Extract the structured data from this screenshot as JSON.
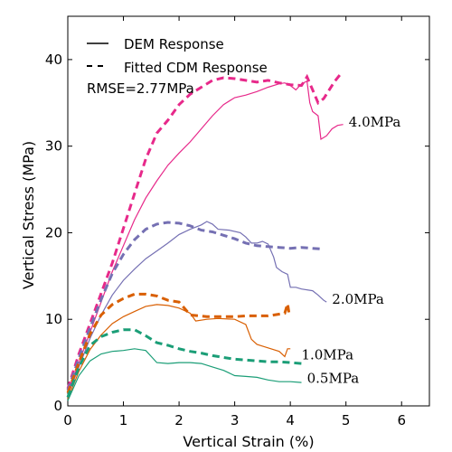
{
  "chart_data": {
    "type": "line",
    "xlabel": "Vertical Strain (%)",
    "ylabel": "Vertical Stress (MPa)",
    "xlim": [
      0,
      6.5
    ],
    "ylim": [
      0,
      45
    ],
    "xticks": [
      0,
      1,
      2,
      3,
      4,
      5,
      6
    ],
    "yticks": [
      0,
      10,
      20,
      30,
      40
    ],
    "grid": false,
    "legend": {
      "placement": "top-left",
      "entries": [
        {
          "label": "DEM Response",
          "style": "solid"
        },
        {
          "label": "Fitted CDM Response",
          "style": "dashed"
        }
      ]
    },
    "rmse_text": "RMSE=2.77MPa",
    "series": [
      {
        "name": "4.0MPa",
        "color": "#e7298a",
        "dem": [
          [
            0,
            1.5
          ],
          [
            0.2,
            5
          ],
          [
            0.4,
            8.5
          ],
          [
            0.6,
            12
          ],
          [
            0.8,
            15.5
          ],
          [
            1.0,
            18.5
          ],
          [
            1.2,
            21.5
          ],
          [
            1.4,
            24
          ],
          [
            1.6,
            26
          ],
          [
            1.8,
            27.8
          ],
          [
            2.0,
            29.2
          ],
          [
            2.2,
            30.5
          ],
          [
            2.4,
            32
          ],
          [
            2.6,
            33.5
          ],
          [
            2.8,
            34.8
          ],
          [
            3.0,
            35.6
          ],
          [
            3.2,
            35.9
          ],
          [
            3.4,
            36.3
          ],
          [
            3.6,
            36.8
          ],
          [
            3.8,
            37.2
          ],
          [
            3.9,
            37.3
          ],
          [
            4.0,
            37
          ],
          [
            4.1,
            36.5
          ],
          [
            4.2,
            37.2
          ],
          [
            4.3,
            37.5
          ],
          [
            4.35,
            35
          ],
          [
            4.4,
            34
          ],
          [
            4.5,
            33.5
          ],
          [
            4.55,
            30.8
          ],
          [
            4.65,
            31.2
          ],
          [
            4.75,
            32
          ],
          [
            4.85,
            32.4
          ],
          [
            4.95,
            32.5
          ]
        ],
        "cdm": [
          [
            0,
            2
          ],
          [
            0.2,
            6
          ],
          [
            0.4,
            9.5
          ],
          [
            0.6,
            13
          ],
          [
            0.8,
            16.5
          ],
          [
            1.0,
            20.5
          ],
          [
            1.2,
            24.5
          ],
          [
            1.4,
            28.5
          ],
          [
            1.6,
            31.5
          ],
          [
            1.8,
            33
          ],
          [
            2.0,
            34.8
          ],
          [
            2.2,
            36
          ],
          [
            2.4,
            36.8
          ],
          [
            2.6,
            37.6
          ],
          [
            2.8,
            37.9
          ],
          [
            3.0,
            37.8
          ],
          [
            3.2,
            37.6
          ],
          [
            3.4,
            37.4
          ],
          [
            3.6,
            37.6
          ],
          [
            3.8,
            37.3
          ],
          [
            4.0,
            37.1
          ],
          [
            4.2,
            37
          ],
          [
            4.3,
            38
          ],
          [
            4.4,
            36.5
          ],
          [
            4.5,
            35
          ],
          [
            4.6,
            35.5
          ],
          [
            4.7,
            36.5
          ],
          [
            4.8,
            37.5
          ],
          [
            4.9,
            38.3
          ]
        ],
        "label_at": [
          5.05,
          32.8
        ]
      },
      {
        "name": "2.0MPa",
        "color": "#7570b3",
        "dem": [
          [
            0,
            1.2
          ],
          [
            0.2,
            4.5
          ],
          [
            0.4,
            7.8
          ],
          [
            0.6,
            10.5
          ],
          [
            0.8,
            12.8
          ],
          [
            1.0,
            14.5
          ],
          [
            1.2,
            15.8
          ],
          [
            1.4,
            17
          ],
          [
            1.6,
            17.9
          ],
          [
            1.8,
            18.8
          ],
          [
            2.0,
            19.8
          ],
          [
            2.2,
            20.4
          ],
          [
            2.4,
            20.9
          ],
          [
            2.5,
            21.3
          ],
          [
            2.6,
            21
          ],
          [
            2.7,
            20.4
          ],
          [
            2.9,
            20.3
          ],
          [
            3.1,
            20
          ],
          [
            3.2,
            19.5
          ],
          [
            3.3,
            18.8
          ],
          [
            3.4,
            18.8
          ],
          [
            3.5,
            19
          ],
          [
            3.6,
            18.7
          ],
          [
            3.7,
            17.2
          ],
          [
            3.75,
            16
          ],
          [
            3.85,
            15.5
          ],
          [
            3.95,
            15.2
          ],
          [
            4.0,
            13.7
          ],
          [
            4.1,
            13.7
          ],
          [
            4.2,
            13.5
          ],
          [
            4.4,
            13.3
          ],
          [
            4.5,
            12.8
          ],
          [
            4.6,
            12.2
          ],
          [
            4.65,
            12
          ]
        ],
        "cdm": [
          [
            0,
            1.8
          ],
          [
            0.2,
            5.5
          ],
          [
            0.4,
            9
          ],
          [
            0.6,
            12.3
          ],
          [
            0.8,
            15.3
          ],
          [
            1.0,
            17.5
          ],
          [
            1.2,
            19.2
          ],
          [
            1.4,
            20.4
          ],
          [
            1.6,
            21
          ],
          [
            1.8,
            21.2
          ],
          [
            2.0,
            21.1
          ],
          [
            2.2,
            20.8
          ],
          [
            2.4,
            20.3
          ],
          [
            2.6,
            20.1
          ],
          [
            2.8,
            19.7
          ],
          [
            3.0,
            19.3
          ],
          [
            3.2,
            18.8
          ],
          [
            3.4,
            18.5
          ],
          [
            3.6,
            18.4
          ],
          [
            3.8,
            18.3
          ],
          [
            4.0,
            18.2
          ],
          [
            4.2,
            18.3
          ],
          [
            4.4,
            18.2
          ],
          [
            4.6,
            18.1
          ]
        ],
        "label_at": [
          4.75,
          12.3
        ]
      },
      {
        "name": "1.0MPa",
        "color": "#d95f02",
        "dem": [
          [
            0,
            0.8
          ],
          [
            0.2,
            4
          ],
          [
            0.4,
            6.5
          ],
          [
            0.6,
            8.2
          ],
          [
            0.8,
            9.5
          ],
          [
            1.0,
            10.3
          ],
          [
            1.2,
            10.9
          ],
          [
            1.4,
            11.5
          ],
          [
            1.6,
            11.7
          ],
          [
            1.8,
            11.6
          ],
          [
            2.0,
            11.3
          ],
          [
            2.2,
            10.7
          ],
          [
            2.3,
            9.8
          ],
          [
            2.5,
            10
          ],
          [
            2.7,
            10.1
          ],
          [
            3.0,
            10
          ],
          [
            3.2,
            9.4
          ],
          [
            3.3,
            7.7
          ],
          [
            3.4,
            7.1
          ],
          [
            3.6,
            6.7
          ],
          [
            3.8,
            6.3
          ],
          [
            3.9,
            5.7
          ],
          [
            3.95,
            6.6
          ],
          [
            4.0,
            6.6
          ]
        ],
        "cdm": [
          [
            0,
            1.5
          ],
          [
            0.2,
            5
          ],
          [
            0.4,
            8.3
          ],
          [
            0.6,
            10.5
          ],
          [
            0.8,
            11.7
          ],
          [
            1.0,
            12.4
          ],
          [
            1.2,
            12.9
          ],
          [
            1.4,
            12.9
          ],
          [
            1.6,
            12.7
          ],
          [
            1.8,
            12.2
          ],
          [
            2.0,
            12
          ],
          [
            2.2,
            10.5
          ],
          [
            2.5,
            10.3
          ],
          [
            2.8,
            10.3
          ],
          [
            3.0,
            10.3
          ],
          [
            3.2,
            10.4
          ],
          [
            3.4,
            10.4
          ],
          [
            3.6,
            10.4
          ],
          [
            3.8,
            10.6
          ],
          [
            3.9,
            10.7
          ],
          [
            3.95,
            11.8
          ],
          [
            3.98,
            10.6
          ],
          [
            4.0,
            10.6
          ]
        ],
        "label_at": [
          4.2,
          5.9
        ]
      },
      {
        "name": "0.5MPa",
        "color": "#1b9e77",
        "dem": [
          [
            0,
            0.6
          ],
          [
            0.2,
            3.5
          ],
          [
            0.4,
            5.2
          ],
          [
            0.6,
            6
          ],
          [
            0.8,
            6.3
          ],
          [
            1.0,
            6.4
          ],
          [
            1.2,
            6.6
          ],
          [
            1.4,
            6.4
          ],
          [
            1.6,
            5
          ],
          [
            1.8,
            4.9
          ],
          [
            2.0,
            5
          ],
          [
            2.2,
            5
          ],
          [
            2.4,
            4.9
          ],
          [
            2.6,
            4.5
          ],
          [
            2.8,
            4.1
          ],
          [
            3.0,
            3.5
          ],
          [
            3.2,
            3.4
          ],
          [
            3.4,
            3.3
          ],
          [
            3.6,
            3
          ],
          [
            3.8,
            2.8
          ],
          [
            4.0,
            2.8
          ],
          [
            4.2,
            2.7
          ]
        ],
        "cdm": [
          [
            0,
            1
          ],
          [
            0.2,
            4.5
          ],
          [
            0.4,
            7
          ],
          [
            0.6,
            8
          ],
          [
            0.8,
            8.5
          ],
          [
            1.0,
            8.8
          ],
          [
            1.2,
            8.8
          ],
          [
            1.4,
            8.1
          ],
          [
            1.6,
            7.3
          ],
          [
            1.8,
            7
          ],
          [
            2.0,
            6.6
          ],
          [
            2.2,
            6.3
          ],
          [
            2.4,
            6.1
          ],
          [
            2.6,
            5.8
          ],
          [
            2.8,
            5.6
          ],
          [
            3.0,
            5.4
          ],
          [
            3.2,
            5.3
          ],
          [
            3.4,
            5.2
          ],
          [
            3.6,
            5.1
          ],
          [
            3.8,
            5.1
          ],
          [
            4.0,
            5.0
          ],
          [
            4.2,
            4.9
          ]
        ],
        "label_at": [
          4.3,
          3.2
        ]
      }
    ]
  }
}
